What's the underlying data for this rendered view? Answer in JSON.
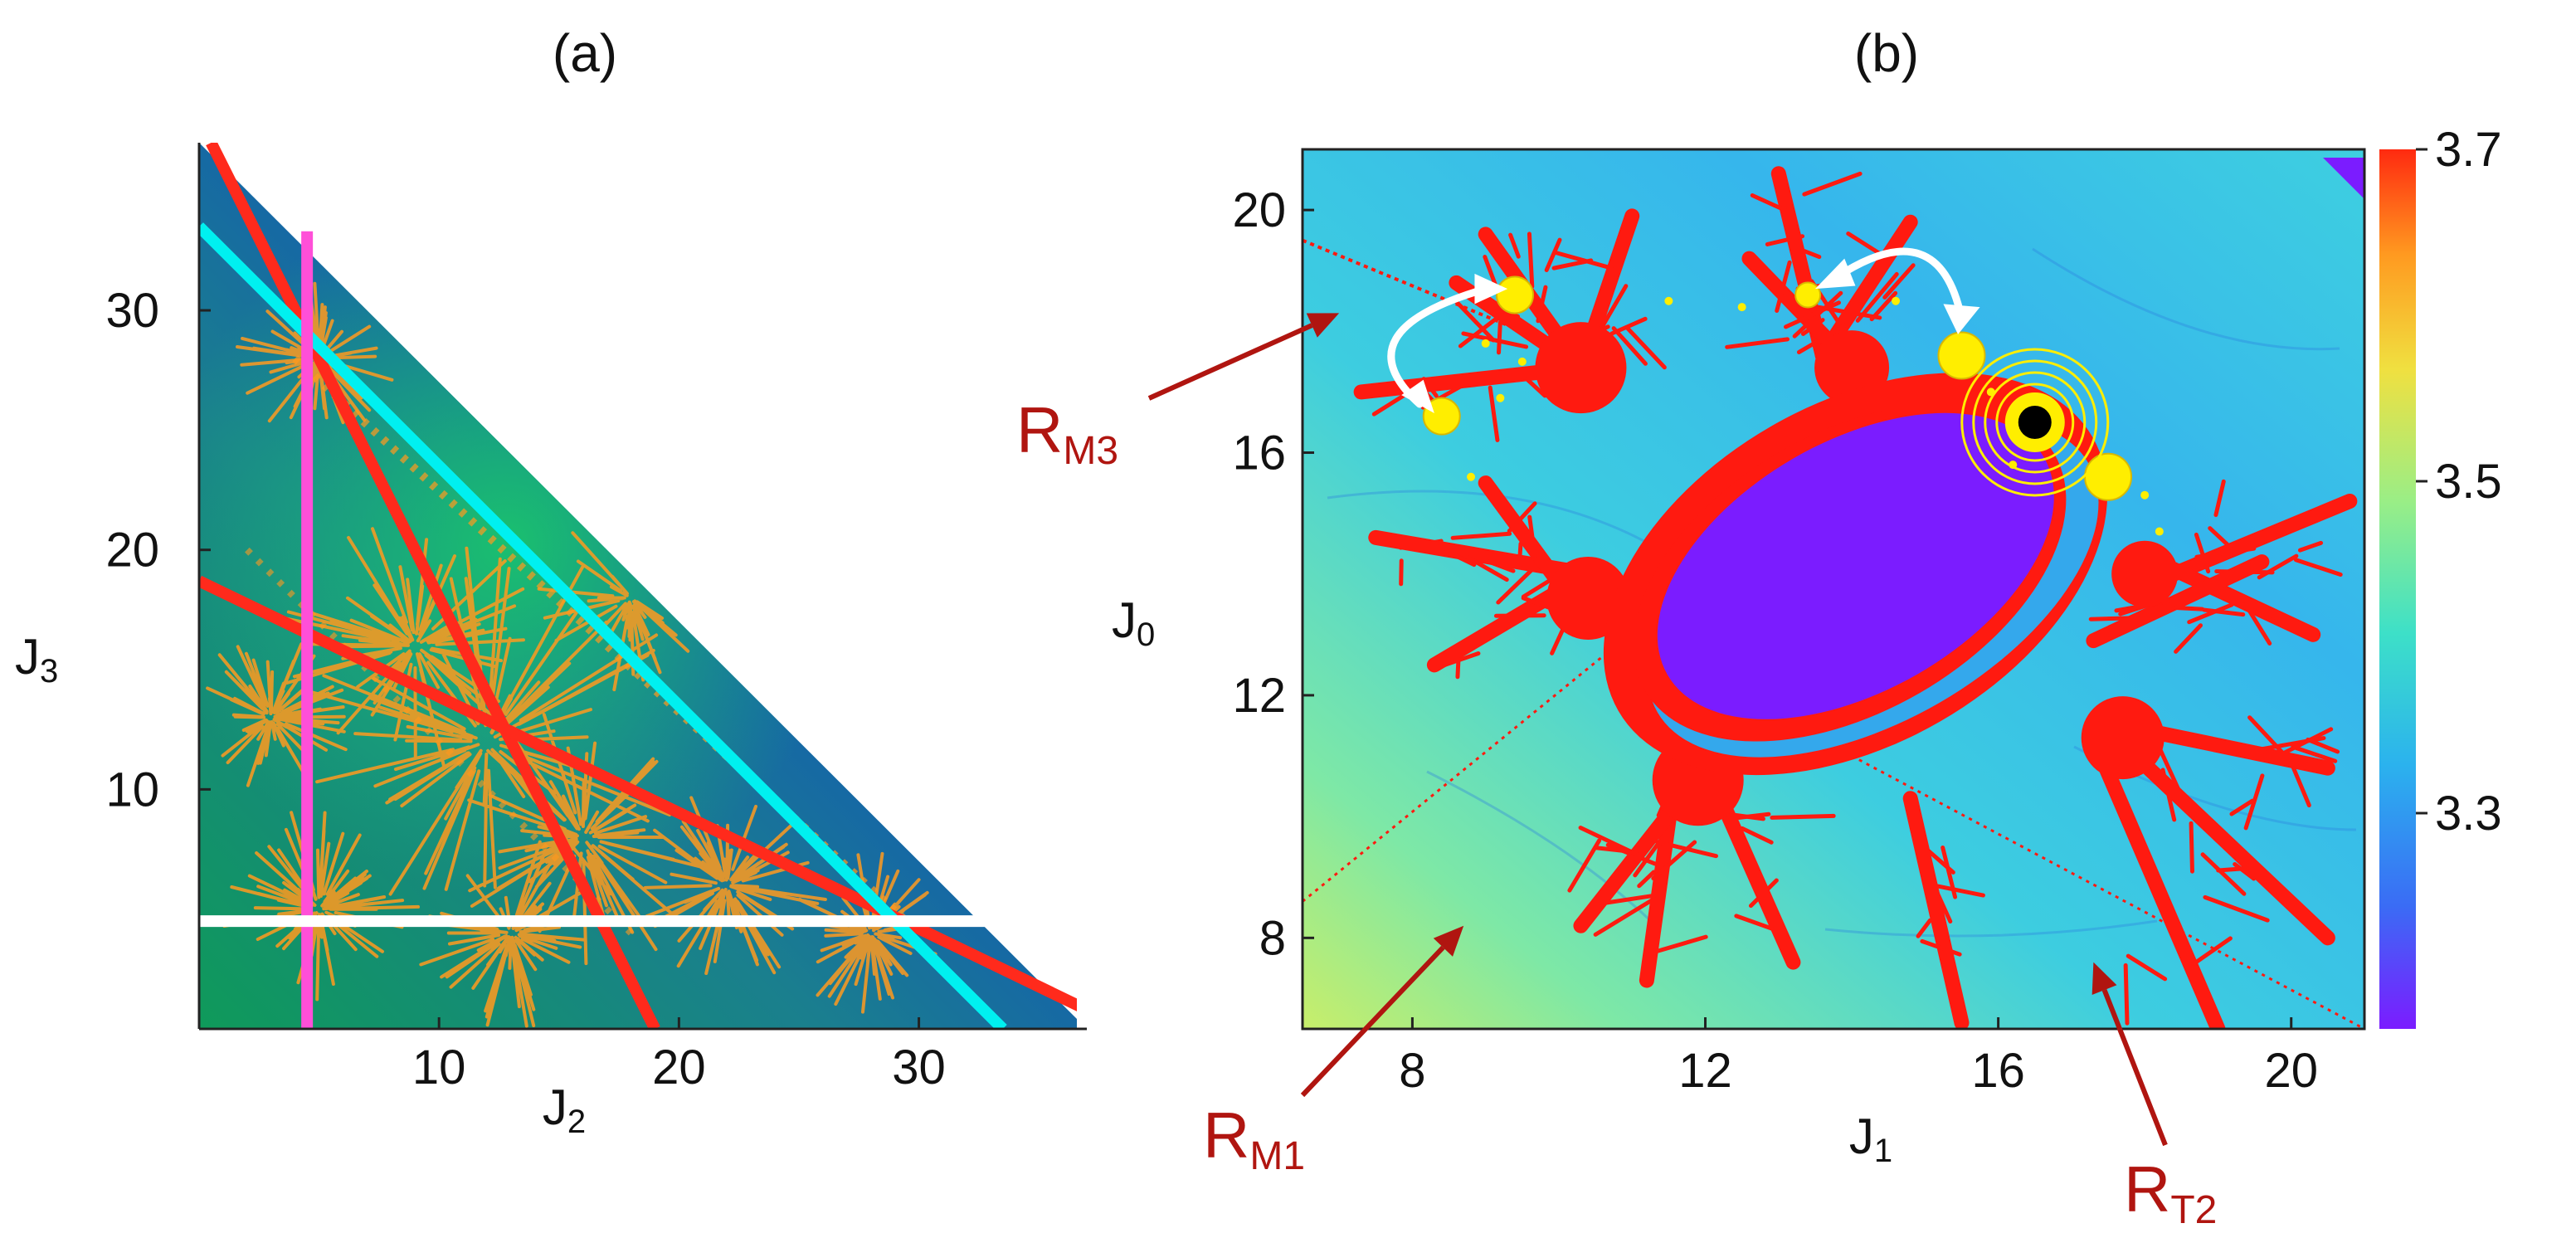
{
  "chart_data": [
    {
      "panel": "(a)",
      "type": "heatmap",
      "xlabel": "J",
      "xlabel_sub": "2",
      "ylabel": "J",
      "ylabel_sub": "3",
      "xlim": [
        0,
        37
      ],
      "ylim": [
        0,
        37
      ],
      "xticks": [
        "10",
        "20",
        "30"
      ],
      "xtick_values": [
        10,
        20,
        30
      ],
      "yticks": [
        "10",
        "20",
        "30"
      ],
      "ytick_values": [
        10,
        20,
        30
      ],
      "domain": "J2 + J3 <= 37",
      "lines": [
        {
          "color": "#ff2a1c",
          "points": [
            [
              0.5,
              37
            ],
            [
              19,
              0
            ]
          ]
        },
        {
          "color": "#ff2a1c",
          "points": [
            [
              0,
              18.7
            ],
            [
              37,
              0.8
            ]
          ]
        },
        {
          "color": "#00f0f0",
          "points": [
            [
              0,
              33.5
            ],
            [
              33.5,
              0
            ]
          ]
        },
        {
          "color": "#ff4fd8",
          "points": [
            [
              4.5,
              0
            ],
            [
              4.5,
              33.3
            ]
          ]
        },
        {
          "color": "#ffffff",
          "points": [
            [
              0,
              4.5
            ],
            [
              33.3,
              4.5
            ]
          ]
        }
      ]
    },
    {
      "panel": "(b)",
      "type": "heatmap",
      "xlabel": "J",
      "xlabel_sub": "1",
      "ylabel": "J",
      "ylabel_sub": "0",
      "xlim": [
        6.5,
        21
      ],
      "ylim": [
        6.5,
        21
      ],
      "xticks": [
        "8",
        "12",
        "16",
        "20"
      ],
      "xtick_values": [
        8,
        12,
        16,
        20
      ],
      "yticks": [
        "8",
        "12",
        "16",
        "20"
      ],
      "ytick_values": [
        8,
        12,
        16,
        20
      ],
      "colorbar": {
        "range": [
          3.17,
          3.7
        ],
        "tick_labels": [
          "3.7",
          "3.5",
          "3.3"
        ],
        "tick_values": [
          3.7,
          3.5,
          3.3
        ],
        "colors": [
          "#7b1cff",
          "#3a6cf5",
          "#2bb2ee",
          "#3de0c8",
          "#9aee86",
          "#f0e040",
          "#ff9a20",
          "#ff2a10"
        ]
      },
      "points": [
        {
          "x": 9.4,
          "y": 18.6,
          "color": "#ffee00"
        },
        {
          "x": 13.4,
          "y": 18.6,
          "color": "#ffee00"
        },
        {
          "x": 8.4,
          "y": 16.6,
          "color": "#ffee00"
        },
        {
          "x": 15.5,
          "y": 17.6,
          "color": "#ffee00"
        },
        {
          "x": 17.5,
          "y": 15.6,
          "color": "#ffee00"
        },
        {
          "x": 16.5,
          "y": 16.5,
          "color": "#000000"
        }
      ],
      "annotations": [
        {
          "text": "R",
          "sub": "M3",
          "target": [
            7.0,
            18.3
          ]
        },
        {
          "text": "R",
          "sub": "M1",
          "target": [
            8.7,
            8.2
          ]
        },
        {
          "text": "R",
          "sub": "T2",
          "target": [
            17.3,
            7.6
          ]
        }
      ]
    }
  ],
  "colors": {
    "annotation": "#b01510",
    "resonance": "#ff1a10",
    "islands": "#ffee00",
    "orange_web": "#ff9a1e"
  }
}
